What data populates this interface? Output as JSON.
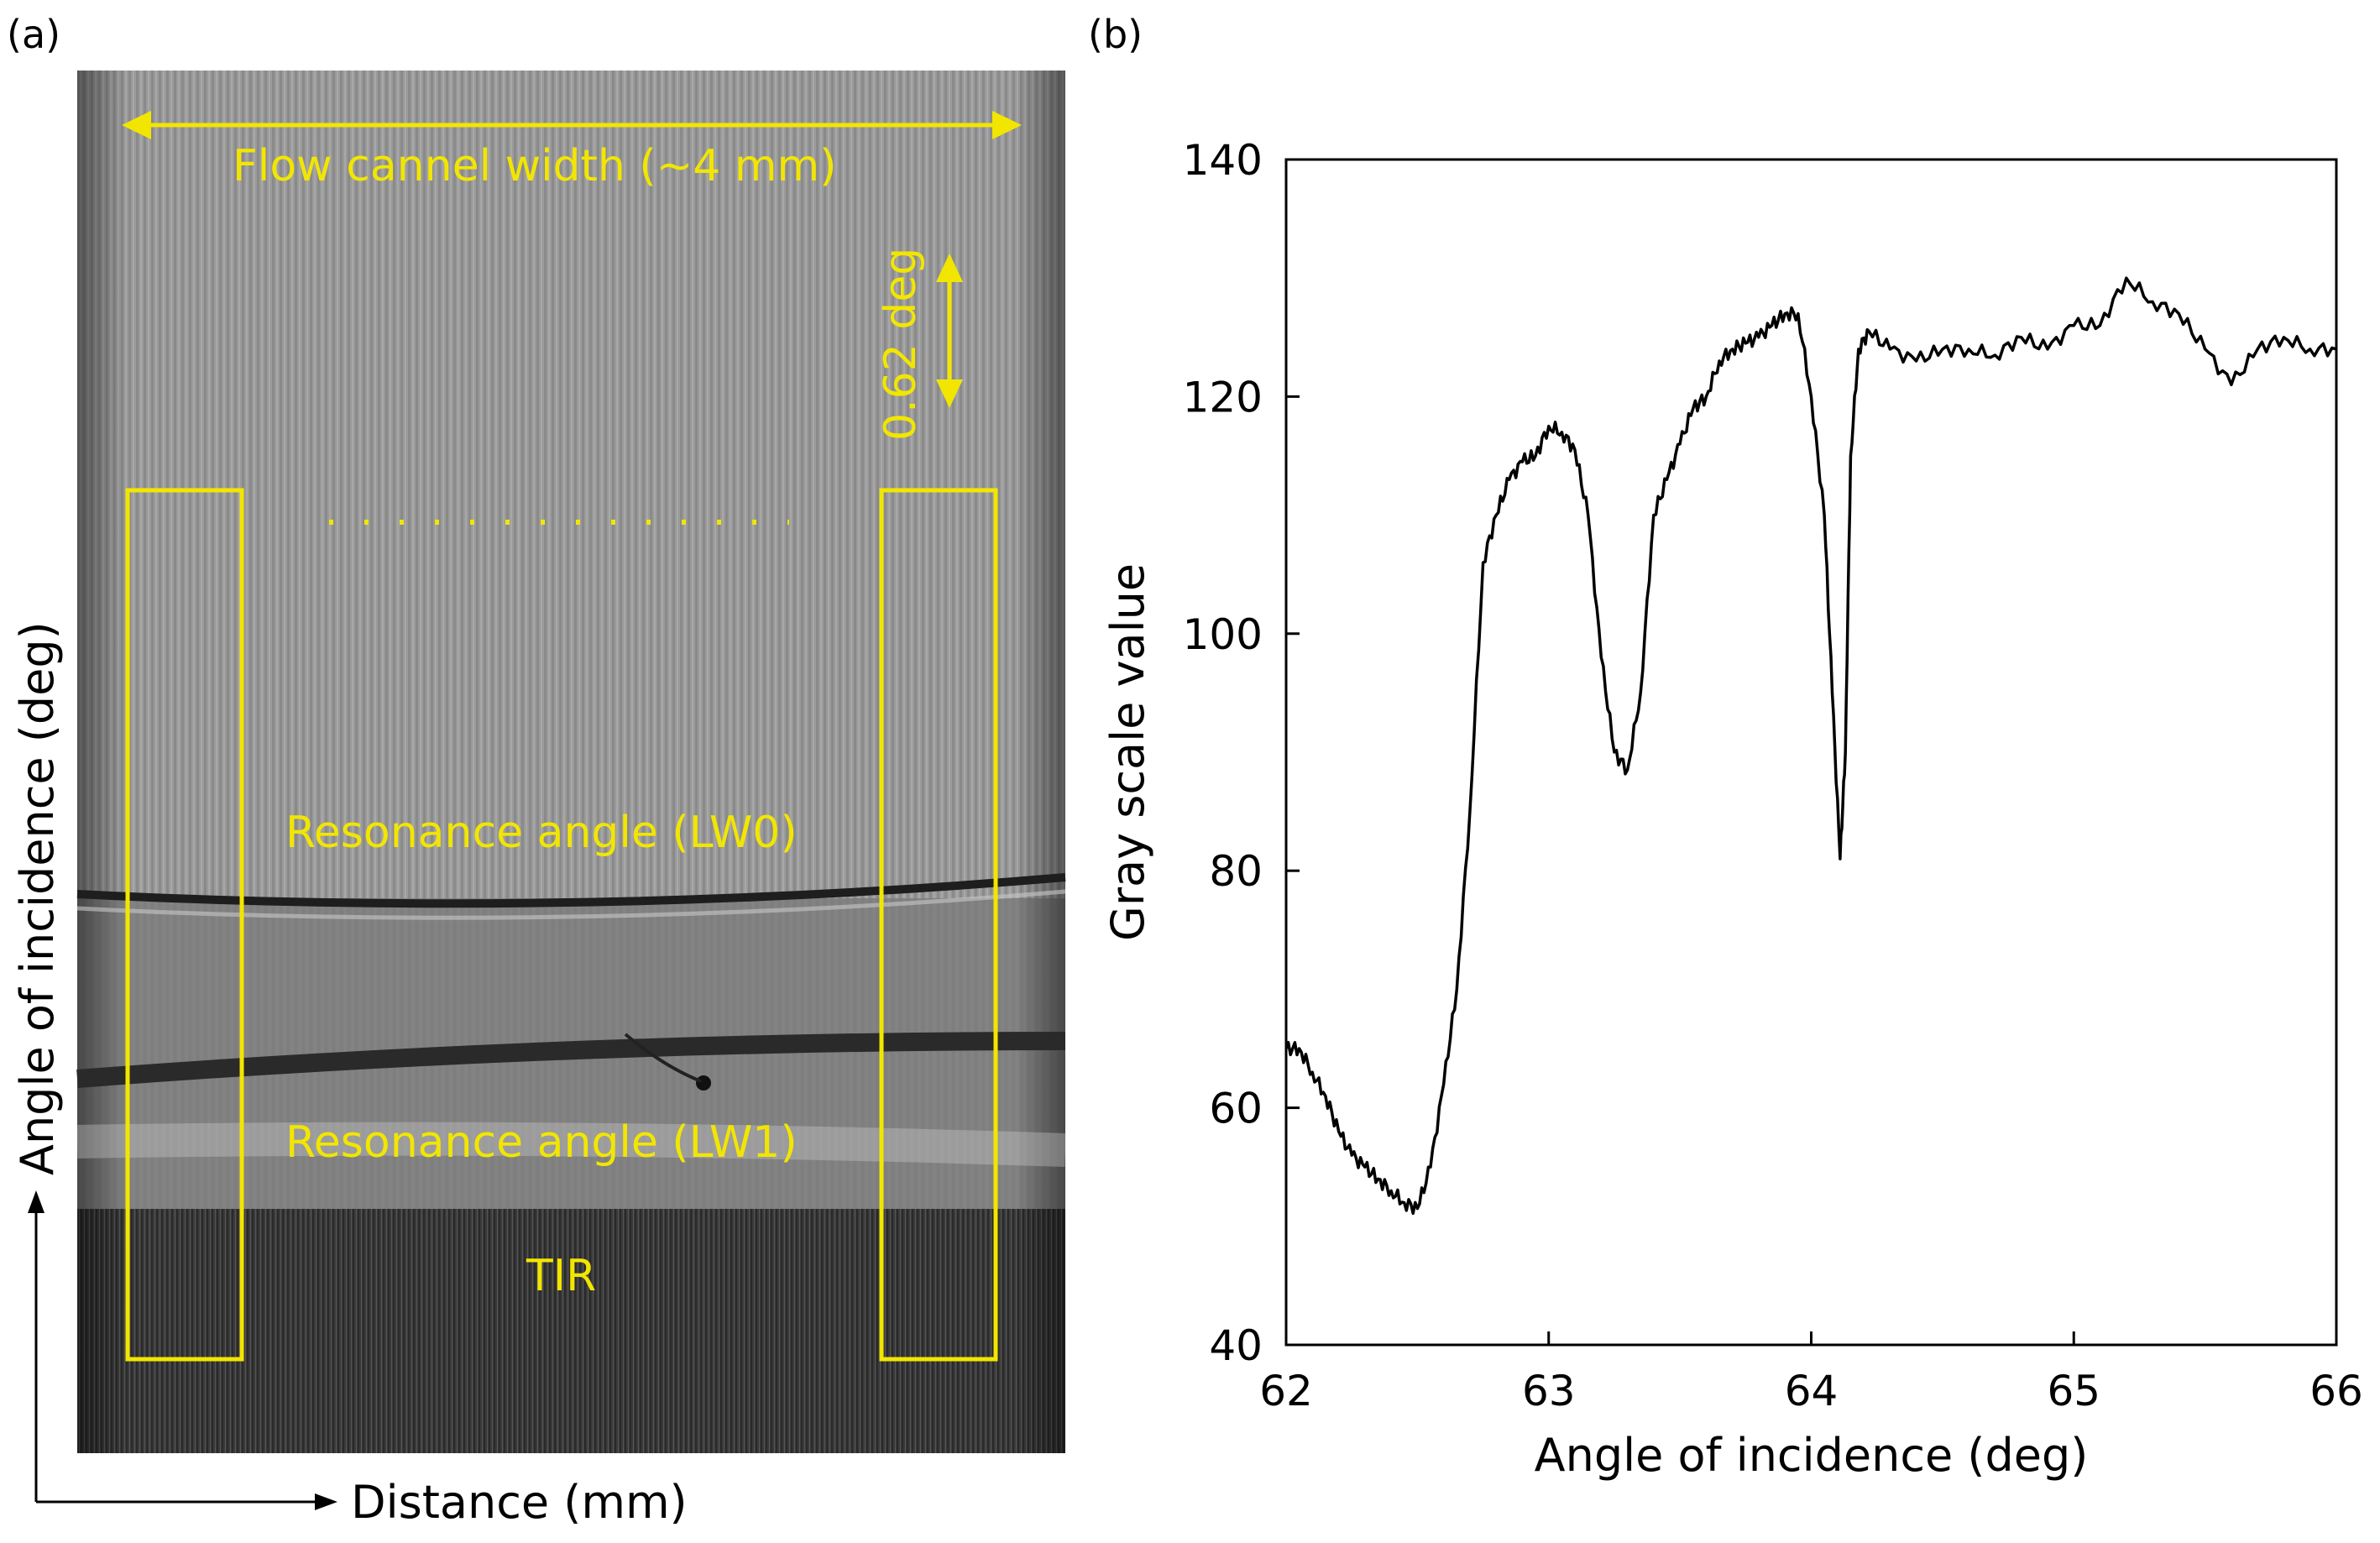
{
  "figure": {
    "panel_a_label": "(a)",
    "panel_b_label": "(b)"
  },
  "panel_a": {
    "y_axis_label": "Angle of incidence (deg)",
    "x_axis_label": "Distance (mm)",
    "width_annotation": "Flow cannel width (~4 mm)",
    "scale_annotation": "0.62 deg",
    "band_lw0_label": "Resonance angle (LW0)",
    "band_lw1_label": "Resonance angle (LW1)",
    "tir_label": "TIR",
    "annotation_color": "#f2e600"
  },
  "chart_data": {
    "type": "line",
    "xlabel": "Angle of incidence (deg)",
    "ylabel": "Gray scale value",
    "xlim": [
      62,
      66
    ],
    "ylim": [
      40,
      140
    ],
    "xticks": [
      62,
      63,
      64,
      65,
      66
    ],
    "yticks": [
      40,
      60,
      80,
      100,
      120,
      140
    ],
    "grid": false,
    "line_color": "#000000",
    "series": [
      {
        "x": [
          62.0,
          62.05,
          62.1,
          62.15,
          62.2,
          62.25,
          62.3,
          62.35,
          62.4,
          62.45,
          62.5,
          62.55,
          62.6,
          62.65,
          62.7,
          62.75,
          62.8,
          62.85,
          62.9,
          62.95,
          63.0,
          63.05,
          63.1,
          63.15,
          63.2,
          63.25,
          63.3,
          63.35,
          63.4,
          63.45,
          63.5,
          63.55,
          63.6,
          63.65,
          63.7,
          63.75,
          63.8,
          63.85,
          63.9,
          63.95,
          64.0,
          64.05,
          64.08,
          64.11,
          64.13,
          64.15,
          64.18,
          64.22,
          64.3,
          64.4,
          64.5,
          64.6,
          64.7,
          64.8,
          64.9,
          65.0,
          65.1,
          65.2,
          65.3,
          65.4,
          65.5,
          65.6,
          65.7,
          65.8,
          65.9,
          66.0
        ],
        "y": [
          65,
          65,
          63,
          61,
          58,
          56,
          55,
          54,
          53,
          52,
          51.5,
          55,
          62,
          70,
          85,
          106,
          110,
          113,
          114.5,
          115,
          117.5,
          117,
          115.5,
          110,
          98,
          90,
          88.5,
          95,
          110,
          113,
          116,
          119,
          120,
          123,
          124,
          124.5,
          125,
          126,
          127,
          127,
          120,
          110,
          95,
          81,
          90,
          115,
          124,
          125.5,
          124,
          123,
          124,
          124,
          123.5,
          125,
          124,
          126,
          126,
          130,
          128,
          127,
          124,
          121,
          124,
          125,
          124,
          124
        ]
      }
    ]
  }
}
